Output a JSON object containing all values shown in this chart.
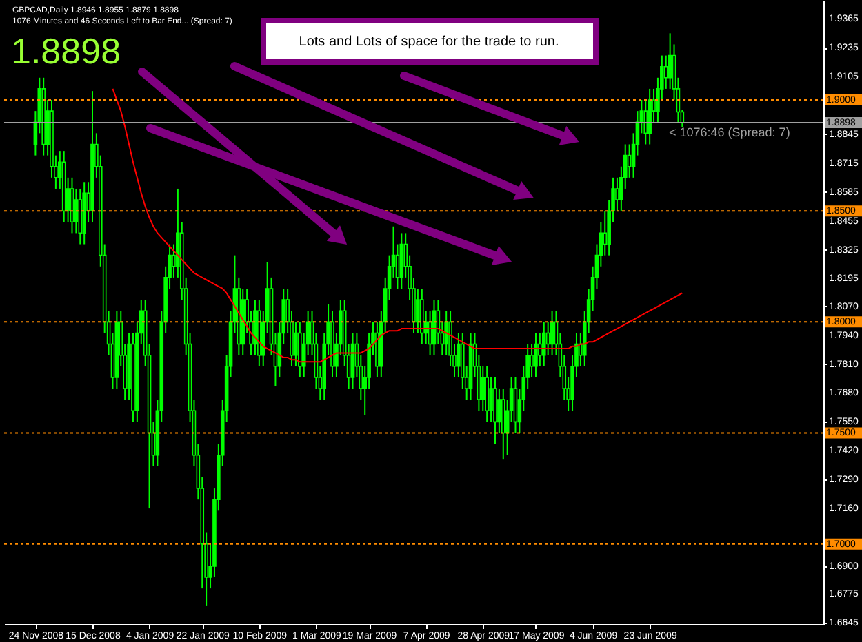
{
  "chart_data": {
    "type": "candlestick",
    "title": "GBPCAD,Daily  1.8946 1.8955 1.8879 1.8898",
    "subtitle": "1076 Minutes and 46 Seconds Left to Bar End... (Spread: 7)",
    "annotations": [
      "1.8898",
      "< 1076:46 (Spread: 7)",
      "Lots and Lots of space for the trade to run."
    ],
    "color": "#00ff00",
    "categories": [
      "24 Nov 2008",
      null,
      null,
      null,
      null,
      null,
      null,
      null,
      null,
      null,
      null,
      null,
      null,
      null,
      "15 Dec 2008",
      null,
      null,
      null,
      null,
      null,
      null,
      null,
      null,
      null,
      null,
      null,
      null,
      null,
      "4 Jan 2009",
      null,
      null,
      null,
      null,
      null,
      null,
      null,
      null,
      null,
      null,
      null,
      null,
      "22 Jan 2009",
      null,
      null,
      null,
      null,
      null,
      null,
      null,
      null,
      null,
      null,
      null,
      null,
      null,
      "10 Feb 2009",
      null,
      null,
      null,
      null,
      null,
      null,
      null,
      null,
      null,
      null,
      null,
      null,
      null,
      "1 Mar 2009",
      null,
      null,
      null,
      null,
      null,
      null,
      null,
      null,
      null,
      null,
      null,
      null,
      "19 Mar 2009",
      null,
      null,
      null,
      null,
      null,
      null,
      null,
      null,
      null,
      null,
      null,
      null,
      null,
      "7 Apr 2009",
      null,
      null,
      null,
      null,
      null,
      null,
      null,
      null,
      null,
      null,
      null,
      null,
      null,
      "28 Apr 2009",
      null,
      null,
      null,
      null,
      null,
      null,
      null,
      null,
      null,
      null,
      null,
      null,
      "17 May 2009",
      null,
      null,
      null,
      null,
      null,
      null,
      null,
      null,
      null,
      null,
      null,
      null,
      null,
      "4 Jun 2009",
      null,
      null,
      null,
      null,
      null,
      null,
      null,
      null,
      null,
      null,
      null,
      null,
      null,
      "23 Jun 2009",
      null,
      null,
      null,
      null,
      null,
      null,
      null,
      null
    ],
    "ohlc": [
      [
        1.88,
        1.895,
        1.875,
        1.89
      ],
      [
        1.89,
        1.91,
        1.885,
        1.905
      ],
      [
        1.905,
        1.91,
        1.875,
        1.88
      ],
      [
        1.88,
        1.9,
        1.875,
        1.895
      ],
      [
        1.895,
        1.9,
        1.865,
        1.87
      ],
      [
        1.87,
        1.875,
        1.86,
        1.865
      ],
      [
        1.865,
        1.877,
        1.86,
        1.872
      ],
      [
        1.872,
        1.877,
        1.845,
        1.85
      ],
      [
        1.85,
        1.865,
        1.845,
        1.86
      ],
      [
        1.86,
        1.865,
        1.84,
        1.845
      ],
      [
        1.845,
        1.86,
        1.84,
        1.855
      ],
      [
        1.855,
        1.86,
        1.835,
        1.84
      ],
      [
        1.84,
        1.863,
        1.835,
        1.858
      ],
      [
        1.858,
        1.863,
        1.845,
        1.85
      ],
      [
        1.85,
        1.904,
        1.845,
        1.88
      ],
      [
        1.88,
        1.885,
        1.865,
        1.87
      ],
      [
        1.87,
        1.875,
        1.825,
        1.83
      ],
      [
        1.83,
        1.835,
        1.795,
        1.8
      ],
      [
        1.8,
        1.805,
        1.785,
        1.79
      ],
      [
        1.79,
        1.795,
        1.77,
        1.775
      ],
      [
        1.775,
        1.805,
        1.77,
        1.8
      ],
      [
        1.8,
        1.805,
        1.78,
        1.785
      ],
      [
        1.785,
        1.79,
        1.765,
        1.77
      ],
      [
        1.77,
        1.795,
        1.765,
        1.79
      ],
      [
        1.79,
        1.795,
        1.755,
        1.76
      ],
      [
        1.76,
        1.8,
        1.755,
        1.795
      ],
      [
        1.795,
        1.81,
        1.79,
        1.805
      ],
      [
        1.805,
        1.81,
        1.78,
        1.785
      ],
      [
        1.785,
        1.79,
        1.716,
        1.75
      ],
      [
        1.75,
        1.755,
        1.735,
        1.74
      ],
      [
        1.74,
        1.765,
        1.735,
        1.76
      ],
      [
        1.76,
        1.805,
        1.755,
        1.8
      ],
      [
        1.8,
        1.825,
        1.795,
        1.82
      ],
      [
        1.82,
        1.835,
        1.815,
        1.83
      ],
      [
        1.83,
        1.835,
        1.82,
        1.825
      ],
      [
        1.825,
        1.86,
        1.82,
        1.84
      ],
      [
        1.84,
        1.845,
        1.81,
        1.815
      ],
      [
        1.815,
        1.82,
        1.785,
        1.79
      ],
      [
        1.79,
        1.795,
        1.755,
        1.76
      ],
      [
        1.76,
        1.765,
        1.735,
        1.74
      ],
      [
        1.74,
        1.745,
        1.72,
        1.725
      ],
      [
        1.725,
        1.73,
        1.68,
        1.7
      ],
      [
        1.7,
        1.705,
        1.672,
        1.685
      ],
      [
        1.685,
        1.7,
        1.68,
        1.69
      ],
      [
        1.69,
        1.725,
        1.685,
        1.72
      ],
      [
        1.72,
        1.745,
        1.715,
        1.74
      ],
      [
        1.74,
        1.765,
        1.735,
        1.76
      ],
      [
        1.76,
        1.785,
        1.755,
        1.78
      ],
      [
        1.78,
        1.805,
        1.775,
        1.8
      ],
      [
        1.8,
        1.83,
        1.795,
        1.815
      ],
      [
        1.815,
        1.82,
        1.785,
        1.79
      ],
      [
        1.79,
        1.815,
        1.785,
        1.81
      ],
      [
        1.81,
        1.815,
        1.795,
        1.8
      ],
      [
        1.8,
        1.805,
        1.785,
        1.79
      ],
      [
        1.79,
        1.81,
        1.785,
        1.805
      ],
      [
        1.805,
        1.81,
        1.78,
        1.785
      ],
      [
        1.785,
        1.805,
        1.78,
        1.8
      ],
      [
        1.8,
        1.827,
        1.795,
        1.815
      ],
      [
        1.815,
        1.82,
        1.785,
        1.79
      ],
      [
        1.79,
        1.795,
        1.771,
        1.78
      ],
      [
        1.78,
        1.8,
        1.775,
        1.795
      ],
      [
        1.795,
        1.815,
        1.79,
        1.81
      ],
      [
        1.81,
        1.815,
        1.795,
        1.8
      ],
      [
        1.8,
        1.805,
        1.78,
        1.785
      ],
      [
        1.785,
        1.8,
        1.78,
        1.795
      ],
      [
        1.795,
        1.8,
        1.775,
        1.78
      ],
      [
        1.78,
        1.795,
        1.775,
        1.79
      ],
      [
        1.79,
        1.805,
        1.785,
        1.8
      ],
      [
        1.8,
        1.805,
        1.785,
        1.79
      ],
      [
        1.79,
        1.795,
        1.77,
        1.775
      ],
      [
        1.775,
        1.78,
        1.765,
        1.77
      ],
      [
        1.77,
        1.795,
        1.765,
        1.79
      ],
      [
        1.79,
        1.808,
        1.785,
        1.8
      ],
      [
        1.8,
        1.805,
        1.775,
        1.78
      ],
      [
        1.78,
        1.795,
        1.775,
        1.79
      ],
      [
        1.79,
        1.81,
        1.785,
        1.805
      ],
      [
        1.805,
        1.81,
        1.78,
        1.785
      ],
      [
        1.785,
        1.79,
        1.77,
        1.775
      ],
      [
        1.775,
        1.795,
        1.77,
        1.79
      ],
      [
        1.79,
        1.795,
        1.775,
        1.78
      ],
      [
        1.78,
        1.785,
        1.765,
        1.77
      ],
      [
        1.77,
        1.78,
        1.758,
        1.775
      ],
      [
        1.775,
        1.795,
        1.77,
        1.79
      ],
      [
        1.79,
        1.8,
        1.785,
        1.795
      ],
      [
        1.795,
        1.8,
        1.775,
        1.78
      ],
      [
        1.78,
        1.805,
        1.775,
        1.8
      ],
      [
        1.8,
        1.82,
        1.795,
        1.815
      ],
      [
        1.815,
        1.83,
        1.81,
        1.825
      ],
      [
        1.825,
        1.843,
        1.82,
        1.83
      ],
      [
        1.83,
        1.835,
        1.815,
        1.82
      ],
      [
        1.82,
        1.84,
        1.815,
        1.835
      ],
      [
        1.835,
        1.84,
        1.82,
        1.825
      ],
      [
        1.825,
        1.83,
        1.81,
        1.815
      ],
      [
        1.815,
        1.82,
        1.795,
        1.8
      ],
      [
        1.8,
        1.815,
        1.795,
        1.81
      ],
      [
        1.81,
        1.815,
        1.79,
        1.795
      ],
      [
        1.795,
        1.805,
        1.79,
        1.8
      ],
      [
        1.8,
        1.805,
        1.785,
        1.79
      ],
      [
        1.79,
        1.81,
        1.785,
        1.805
      ],
      [
        1.805,
        1.81,
        1.79,
        1.795
      ],
      [
        1.795,
        1.8,
        1.785,
        1.79
      ],
      [
        1.79,
        1.805,
        1.785,
        1.8
      ],
      [
        1.8,
        1.805,
        1.78,
        1.785
      ],
      [
        1.785,
        1.79,
        1.775,
        1.78
      ],
      [
        1.78,
        1.795,
        1.775,
        1.79
      ],
      [
        1.79,
        1.795,
        1.77,
        1.775
      ],
      [
        1.775,
        1.78,
        1.765,
        1.77
      ],
      [
        1.77,
        1.795,
        1.765,
        1.79
      ],
      [
        1.79,
        1.795,
        1.775,
        1.78
      ],
      [
        1.78,
        1.785,
        1.76,
        1.765
      ],
      [
        1.765,
        1.78,
        1.76,
        1.775
      ],
      [
        1.775,
        1.78,
        1.755,
        1.76
      ],
      [
        1.76,
        1.775,
        1.755,
        1.77
      ],
      [
        1.77,
        1.775,
        1.745,
        1.755
      ],
      [
        1.755,
        1.77,
        1.75,
        1.765
      ],
      [
        1.765,
        1.77,
        1.738,
        1.75
      ],
      [
        1.75,
        1.765,
        1.74,
        1.76
      ],
      [
        1.76,
        1.775,
        1.755,
        1.77
      ],
      [
        1.77,
        1.775,
        1.75,
        1.755
      ],
      [
        1.755,
        1.77,
        1.75,
        1.765
      ],
      [
        1.765,
        1.78,
        1.76,
        1.775
      ],
      [
        1.775,
        1.79,
        1.77,
        1.785
      ],
      [
        1.785,
        1.79,
        1.775,
        1.78
      ],
      [
        1.78,
        1.795,
        1.775,
        1.79
      ],
      [
        1.79,
        1.795,
        1.78,
        1.785
      ],
      [
        1.785,
        1.8,
        1.78,
        1.795
      ],
      [
        1.795,
        1.8,
        1.785,
        1.79
      ],
      [
        1.79,
        1.805,
        1.785,
        1.8
      ],
      [
        1.8,
        1.805,
        1.785,
        1.79
      ],
      [
        1.79,
        1.795,
        1.775,
        1.78
      ],
      [
        1.78,
        1.785,
        1.765,
        1.77
      ],
      [
        1.77,
        1.775,
        1.76,
        1.765
      ],
      [
        1.765,
        1.785,
        1.76,
        1.78
      ],
      [
        1.78,
        1.795,
        1.775,
        1.79
      ],
      [
        1.79,
        1.795,
        1.78,
        1.785
      ],
      [
        1.785,
        1.805,
        1.78,
        1.8
      ],
      [
        1.8,
        1.815,
        1.795,
        1.81
      ],
      [
        1.81,
        1.825,
        1.805,
        1.82
      ],
      [
        1.82,
        1.835,
        1.815,
        1.83
      ],
      [
        1.83,
        1.845,
        1.825,
        1.84
      ],
      [
        1.84,
        1.85,
        1.83,
        1.835
      ],
      [
        1.835,
        1.855,
        1.83,
        1.85
      ],
      [
        1.85,
        1.865,
        1.845,
        1.86
      ],
      [
        1.86,
        1.865,
        1.85,
        1.855
      ],
      [
        1.855,
        1.87,
        1.85,
        1.865
      ],
      [
        1.865,
        1.88,
        1.86,
        1.875
      ],
      [
        1.875,
        1.88,
        1.865,
        1.87
      ],
      [
        1.87,
        1.885,
        1.865,
        1.88
      ],
      [
        1.88,
        1.895,
        1.875,
        1.89
      ],
      [
        1.89,
        1.9,
        1.885,
        1.895
      ],
      [
        1.895,
        1.9,
        1.88,
        1.885
      ],
      [
        1.885,
        1.905,
        1.88,
        1.9
      ],
      [
        1.9,
        1.905,
        1.89,
        1.895
      ],
      [
        1.895,
        1.91,
        1.89,
        1.905
      ],
      [
        1.905,
        1.92,
        1.9,
        1.915
      ],
      [
        1.915,
        1.92,
        1.905,
        1.91
      ],
      [
        1.91,
        1.93,
        1.905,
        1.92
      ],
      [
        1.92,
        1.925,
        1.9,
        1.905
      ],
      [
        1.905,
        1.91,
        1.89,
        1.8946
      ],
      [
        1.8946,
        1.8955,
        1.8879,
        1.8898
      ]
    ],
    "series": [
      {
        "type": "line",
        "color": "#ff0000",
        "values": [
          null,
          null,
          null,
          null,
          null,
          null,
          null,
          null,
          null,
          null,
          null,
          null,
          null,
          null,
          null,
          null,
          null,
          null,
          null,
          1.905,
          1.9,
          1.895,
          1.888,
          1.88,
          1.872,
          1.865,
          1.858,
          1.852,
          1.847,
          1.843,
          1.84,
          1.838,
          1.836,
          1.834,
          1.832,
          1.83,
          1.828,
          1.826,
          1.824,
          1.822,
          1.821,
          1.82,
          1.819,
          1.818,
          1.817,
          1.816,
          1.815,
          1.813,
          1.81,
          1.807,
          1.804,
          1.801,
          1.798,
          1.795,
          1.793,
          1.791,
          1.789,
          1.788,
          1.787,
          1.786,
          1.785,
          1.784,
          1.784,
          1.783,
          1.783,
          1.782,
          1.782,
          1.782,
          1.782,
          1.782,
          1.782,
          1.783,
          1.784,
          1.785,
          1.786,
          1.786,
          1.786,
          1.786,
          1.786,
          1.786,
          1.786,
          1.787,
          1.788,
          1.79,
          1.792,
          1.794,
          1.795,
          1.796,
          1.796,
          1.796,
          1.797,
          1.797,
          1.797,
          1.797,
          1.797,
          1.797,
          1.797,
          1.797,
          1.797,
          1.797,
          1.796,
          1.795,
          1.794,
          1.793,
          1.792,
          1.791,
          1.79,
          1.789,
          1.788,
          1.788,
          1.788,
          1.788,
          1.788,
          1.788,
          1.788,
          1.788,
          1.788,
          1.788,
          1.788,
          1.788,
          1.788,
          1.788,
          1.788,
          1.788,
          1.788,
          1.788,
          1.788,
          1.788,
          1.788,
          1.788,
          1.788,
          1.788,
          1.789,
          1.789,
          1.79,
          1.79,
          1.791,
          1.791,
          1.792,
          1.793,
          1.794,
          1.795,
          1.796,
          1.797,
          1.798,
          1.799,
          1.8,
          1.801,
          1.802,
          1.803,
          1.804,
          1.805,
          1.806,
          1.807,
          1.808,
          1.809,
          1.81,
          1.811,
          1.812,
          1.813
        ]
      }
    ],
    "ylim": [
      1.6639,
      1.945
    ],
    "yticks": [
      1.9365,
      1.9235,
      1.9105,
      1.8845,
      1.8715,
      1.8585,
      1.8455,
      1.8325,
      1.8195,
      {
        "value": 1.807,
        "label": "1.8070"
      },
      {
        "value": 1.794,
        "label": "1.7940"
      },
      {
        "value": 1.781,
        "label": "1.7810"
      },
      {
        "value": 1.768,
        "label": "1.7680"
      },
      {
        "value": 1.755,
        "label": "1.7550"
      },
      {
        "value": 1.742,
        "label": "1.7420"
      },
      {
        "value": 1.729,
        "label": "1.7290"
      },
      {
        "value": 1.716,
        "label": "1.7160"
      },
      {
        "value": 1.69,
        "label": "1.6900"
      },
      1.6775,
      1.6645
    ],
    "ref_lines": [
      {
        "axis": "y",
        "value": 1.9,
        "label": "1.9000",
        "color": "#ff8c00",
        "line_style": "dotted"
      },
      {
        "axis": "y",
        "value": 1.85,
        "label": "1.8500",
        "color": "#ff8c00",
        "line_style": "dotted"
      },
      {
        "axis": "y",
        "value": 1.8,
        "label": "1.8000",
        "color": "#ff8c00",
        "line_style": "dotted"
      },
      {
        "axis": "y",
        "value": 1.75,
        "label": "1.7500",
        "color": "#ff8c00",
        "line_style": "dotted"
      },
      {
        "axis": "y",
        "value": 1.7,
        "label": "1.7000",
        "color": "#ff8c00",
        "line_style": "dotted"
      },
      {
        "axis": "y",
        "value": 1.8898,
        "label": "1.8898",
        "color": "#a0a0a0",
        "line_style": "solid"
      }
    ]
  }
}
